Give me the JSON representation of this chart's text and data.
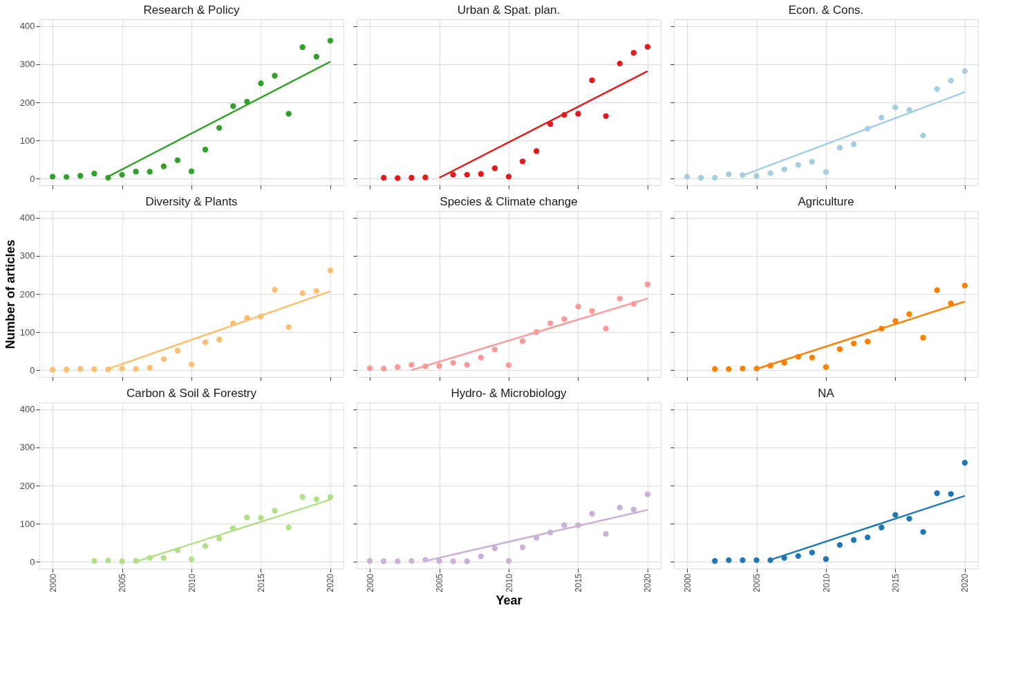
{
  "chart_data": [
    {
      "type": "scatter",
      "title": "Research & Policy",
      "tick_labels": "y",
      "xlim": [
        1999.05,
        2020.95
      ],
      "ylim": [
        -18,
        418
      ],
      "xticks": [
        2000,
        2005,
        2010,
        2015,
        2020
      ],
      "yticks": [
        0,
        100,
        200,
        300,
        400
      ],
      "grid": true,
      "marker": "circle",
      "series": [
        {
          "color": "#33a02c",
          "x": [
            2000,
            2001,
            2002,
            2003,
            2004,
            2005,
            2006,
            2007,
            2008,
            2009,
            2010,
            2011,
            2012,
            2013,
            2014,
            2015,
            2016,
            2017,
            2018,
            2019,
            2020
          ],
          "values": [
            5,
            4,
            7,
            13,
            2,
            10,
            18,
            18,
            32,
            48,
            19,
            76,
            133,
            190,
            202,
            250,
            270,
            170,
            345,
            320,
            362
          ]
        },
        {
          "type": "line",
          "marker": "none",
          "color": "#33a02c",
          "x": [
            2004,
            2020
          ],
          "values": [
            5,
            307
          ]
        }
      ]
    },
    {
      "type": "scatter",
      "title": "Urban & Spat. plan.",
      "tick_labels": false,
      "xlim": [
        1999.05,
        2020.95
      ],
      "ylim": [
        -18,
        418
      ],
      "xticks": [
        2000,
        2005,
        2010,
        2015,
        2020
      ],
      "yticks": [
        0,
        100,
        200,
        300,
        400
      ],
      "grid": true,
      "marker": "circle",
      "series": [
        {
          "color": "#e31a1c",
          "x": [
            2001,
            2002,
            2003,
            2004,
            2006,
            2007,
            2008,
            2009,
            2010,
            2011,
            2012,
            2013,
            2014,
            2015,
            2016,
            2017,
            2018,
            2019,
            2020
          ],
          "values": [
            2,
            1,
            2,
            3,
            10,
            10,
            12,
            27,
            5,
            45,
            72,
            143,
            167,
            170,
            258,
            164,
            302,
            330,
            346
          ]
        },
        {
          "type": "line",
          "marker": "none",
          "color": "#e31a1c",
          "x": [
            2005,
            2020
          ],
          "values": [
            2,
            282
          ]
        }
      ]
    },
    {
      "type": "scatter",
      "title": "Econ. & Cons.",
      "tick_labels": false,
      "xlim": [
        1999.05,
        2020.95
      ],
      "ylim": [
        -18,
        418
      ],
      "xticks": [
        2000,
        2005,
        2010,
        2015,
        2020
      ],
      "yticks": [
        0,
        100,
        200,
        300,
        400
      ],
      "grid": true,
      "marker": "circle",
      "series": [
        {
          "color": "#a6cee3",
          "x": [
            2000,
            2001,
            2002,
            2003,
            2004,
            2005,
            2006,
            2007,
            2008,
            2009,
            2010,
            2011,
            2012,
            2013,
            2014,
            2015,
            2016,
            2017,
            2018,
            2019,
            2020
          ],
          "values": [
            5,
            2,
            2,
            11,
            9,
            7,
            14,
            24,
            36,
            44,
            17,
            81,
            90,
            131,
            160,
            187,
            180,
            113,
            235,
            257,
            282
          ]
        },
        {
          "type": "line",
          "marker": "none",
          "color": "#a6cee3",
          "x": [
            2004,
            2020
          ],
          "values": [
            8,
            227
          ]
        }
      ]
    },
    {
      "type": "scatter",
      "title": "Diversity & Plants",
      "ylabel": "Number of articles",
      "tick_labels": "y",
      "xlim": [
        1999.05,
        2020.95
      ],
      "ylim": [
        -18,
        418
      ],
      "xticks": [
        2000,
        2005,
        2010,
        2015,
        2020
      ],
      "yticks": [
        0,
        100,
        200,
        300,
        400
      ],
      "grid": true,
      "marker": "circle",
      "series": [
        {
          "color": "#fdbf6f",
          "x": [
            2000,
            2001,
            2002,
            2003,
            2004,
            2005,
            2006,
            2007,
            2008,
            2009,
            2010,
            2011,
            2012,
            2013,
            2014,
            2015,
            2016,
            2017,
            2018,
            2019,
            2020
          ],
          "values": [
            1,
            1,
            3,
            2,
            2,
            4,
            3,
            6,
            29,
            51,
            15,
            73,
            80,
            123,
            137,
            141,
            211,
            113,
            202,
            208,
            262
          ]
        },
        {
          "type": "line",
          "marker": "none",
          "color": "#fdbf6f",
          "x": [
            2004,
            2020
          ],
          "values": [
            3,
            207
          ]
        }
      ]
    },
    {
      "type": "scatter",
      "title": "Species & Climate change",
      "tick_labels": false,
      "xlim": [
        1999.05,
        2020.95
      ],
      "ylim": [
        -18,
        418
      ],
      "xticks": [
        2000,
        2005,
        2010,
        2015,
        2020
      ],
      "yticks": [
        0,
        100,
        200,
        300,
        400
      ],
      "grid": true,
      "marker": "circle",
      "series": [
        {
          "color": "#fb9a99",
          "x": [
            2000,
            2001,
            2002,
            2003,
            2004,
            2005,
            2006,
            2007,
            2008,
            2009,
            2010,
            2011,
            2012,
            2013,
            2014,
            2015,
            2016,
            2017,
            2018,
            2019,
            2020
          ],
          "values": [
            5,
            4,
            8,
            14,
            10,
            11,
            19,
            14,
            33,
            54,
            13,
            76,
            100,
            123,
            134,
            167,
            155,
            109,
            188,
            174,
            225
          ]
        },
        {
          "type": "line",
          "marker": "none",
          "color": "#fb9a99",
          "x": [
            2003,
            2020
          ],
          "values": [
            0,
            188
          ]
        }
      ]
    },
    {
      "type": "scatter",
      "title": "Agriculture",
      "tick_labels": false,
      "xlim": [
        1999.05,
        2020.95
      ],
      "ylim": [
        -18,
        418
      ],
      "xticks": [
        2000,
        2005,
        2010,
        2015,
        2020
      ],
      "yticks": [
        0,
        100,
        200,
        300,
        400
      ],
      "grid": true,
      "marker": "circle",
      "series": [
        {
          "color": "#ff7f00",
          "x": [
            2002,
            2003,
            2004,
            2005,
            2006,
            2007,
            2008,
            2009,
            2010,
            2011,
            2012,
            2013,
            2014,
            2015,
            2016,
            2017,
            2018,
            2019,
            2020
          ],
          "values": [
            3,
            3,
            4,
            4,
            12,
            19,
            35,
            33,
            8,
            55,
            70,
            75,
            109,
            129,
            147,
            85,
            210,
            175,
            222
          ]
        },
        {
          "type": "line",
          "marker": "none",
          "color": "#ff7f00",
          "x": [
            2005,
            2020
          ],
          "values": [
            3,
            180
          ]
        }
      ]
    },
    {
      "type": "scatter",
      "title": "Carbon & Soil & Forestry",
      "xlim": [
        1999.05,
        2020.95
      ],
      "ylim": [
        -18,
        418
      ],
      "xticks": [
        2000,
        2005,
        2010,
        2015,
        2020
      ],
      "yticks": [
        0,
        100,
        200,
        300,
        400
      ],
      "grid": true,
      "marker": "circle",
      "series": [
        {
          "color": "#b2df8a",
          "x": [
            2003,
            2004,
            2005,
            2006,
            2007,
            2008,
            2009,
            2010,
            2011,
            2012,
            2013,
            2014,
            2015,
            2016,
            2017,
            2018,
            2019,
            2020
          ],
          "values": [
            2,
            3,
            1,
            2,
            10,
            10,
            30,
            6,
            41,
            61,
            88,
            116,
            115,
            134,
            90,
            170,
            164,
            170
          ]
        },
        {
          "type": "line",
          "marker": "none",
          "color": "#b2df8a",
          "x": [
            2006,
            2020
          ],
          "values": [
            0,
            163
          ]
        }
      ]
    },
    {
      "type": "scatter",
      "title": "Hydro- & Microbiology",
      "xlabel": "Year",
      "tick_labels": "x",
      "xlim": [
        1999.05,
        2020.95
      ],
      "ylim": [
        -18,
        418
      ],
      "xticks": [
        2000,
        2005,
        2010,
        2015,
        2020
      ],
      "yticks": [
        0,
        100,
        200,
        300,
        400
      ],
      "grid": true,
      "marker": "circle",
      "series": [
        {
          "color": "#cab2d6",
          "x": [
            2000,
            2001,
            2002,
            2003,
            2004,
            2005,
            2006,
            2007,
            2008,
            2009,
            2010,
            2011,
            2012,
            2013,
            2014,
            2015,
            2016,
            2017,
            2018,
            2019,
            2020
          ],
          "values": [
            2,
            1,
            1,
            2,
            5,
            2,
            1,
            1,
            14,
            35,
            2,
            38,
            63,
            77,
            96,
            96,
            126,
            73,
            142,
            137,
            177
          ]
        },
        {
          "type": "line",
          "marker": "none",
          "color": "#cab2d6",
          "x": [
            2004,
            2020
          ],
          "values": [
            2,
            136
          ]
        }
      ]
    },
    {
      "type": "scatter",
      "title": "NA",
      "tick_labels": "x",
      "xlim": [
        1999.05,
        2020.95
      ],
      "ylim": [
        -18,
        418
      ],
      "xticks": [
        2000,
        2005,
        2010,
        2015,
        2020
      ],
      "yticks": [
        0,
        100,
        200,
        300,
        400
      ],
      "grid": true,
      "marker": "circle",
      "series": [
        {
          "color": "#1f78b4",
          "x": [
            2002,
            2003,
            2004,
            2005,
            2006,
            2007,
            2008,
            2009,
            2010,
            2011,
            2012,
            2013,
            2014,
            2015,
            2016,
            2017,
            2018,
            2019,
            2020
          ],
          "values": [
            2,
            4,
            4,
            4,
            4,
            10,
            15,
            24,
            7,
            44,
            57,
            64,
            90,
            123,
            113,
            78,
            180,
            178,
            260
          ]
        },
        {
          "type": "line",
          "marker": "none",
          "color": "#1f78b4",
          "x": [
            2006,
            2020
          ],
          "values": [
            5,
            173
          ]
        }
      ]
    }
  ]
}
